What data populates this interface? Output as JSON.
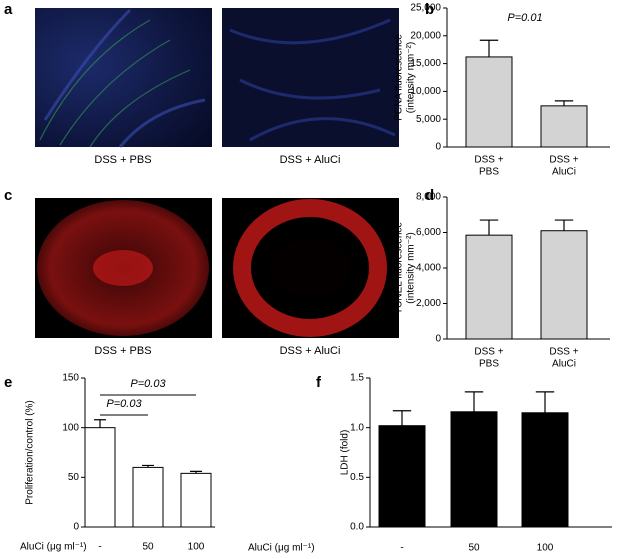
{
  "image_panels": [
    {
      "label": "a",
      "captions": [
        "DSS + PBS",
        "DSS + AluCi"
      ]
    },
    {
      "label": "c",
      "captions": [
        "DSS + PBS",
        "DSS + AluCi"
      ]
    }
  ],
  "chart_data": [
    {
      "type": "bar",
      "panel": "b",
      "ylabel": [
        "PCNA fluorescence",
        "(intensity mm⁻²)"
      ],
      "categories": [
        [
          "DSS +",
          "PBS"
        ],
        [
          "DSS +",
          "AluCi"
        ]
      ],
      "values": [
        16200,
        7400
      ],
      "errors": [
        3000,
        900
      ],
      "color": "#d3d3d3",
      "ylim": [
        0,
        25000
      ],
      "yticks": [
        0,
        {
          "value": 5000,
          "label": "5,000"
        },
        {
          "value": 10000,
          "label": "10,000"
        },
        {
          "value": 15000,
          "label": "15,000"
        },
        {
          "value": 20000,
          "label": "20,000"
        },
        {
          "value": 25000,
          "label": "25,000"
        }
      ],
      "annotations": [
        "P=0.01"
      ]
    },
    {
      "type": "bar",
      "panel": "d",
      "ylabel": [
        "TUNEL fluorescence",
        "(intensity mm⁻²)"
      ],
      "categories": [
        [
          "DSS +",
          "PBS"
        ],
        [
          "DSS +",
          "AluCi"
        ]
      ],
      "values": [
        5850,
        6100
      ],
      "errors": [
        850,
        600
      ],
      "color": "#d3d3d3",
      "ylim": [
        0,
        8000
      ],
      "yticks": [
        0,
        {
          "value": 2000,
          "label": "2,000"
        },
        {
          "value": 4000,
          "label": "4,000"
        },
        {
          "value": 6000,
          "label": "6,000"
        },
        {
          "value": 8000,
          "label": "8,000"
        }
      ]
    },
    {
      "type": "bar",
      "panel": "e",
      "ylabel": [
        "Proliferation/control (%)"
      ],
      "xlabel": "AluCi (μg ml⁻¹)",
      "categories": [
        [
          "-"
        ],
        [
          "50"
        ],
        [
          "100"
        ]
      ],
      "values": [
        100,
        60,
        54
      ],
      "errors": [
        8,
        2,
        2
      ],
      "color": "#ffffff",
      "ylim": [
        0,
        150
      ],
      "yticks": [
        0,
        50,
        100,
        150
      ],
      "annotations": [
        "P=0.03",
        "P=0.03"
      ]
    },
    {
      "type": "bar",
      "panel": "f",
      "ylabel": [
        "LDH (fold)"
      ],
      "xlabel": "AluCi (μg ml⁻¹)",
      "categories": [
        [
          "-"
        ],
        [
          "50"
        ],
        [
          "100"
        ]
      ],
      "values": [
        1.02,
        1.16,
        1.15
      ],
      "errors": [
        0.15,
        0.2,
        0.21
      ],
      "color": "#000000",
      "ylim": [
        0,
        1.5
      ],
      "yticks": [
        {
          "value": 0,
          "label": "0.0"
        },
        0.5,
        {
          "value": 1,
          "label": "1.0"
        },
        1.5
      ]
    }
  ]
}
